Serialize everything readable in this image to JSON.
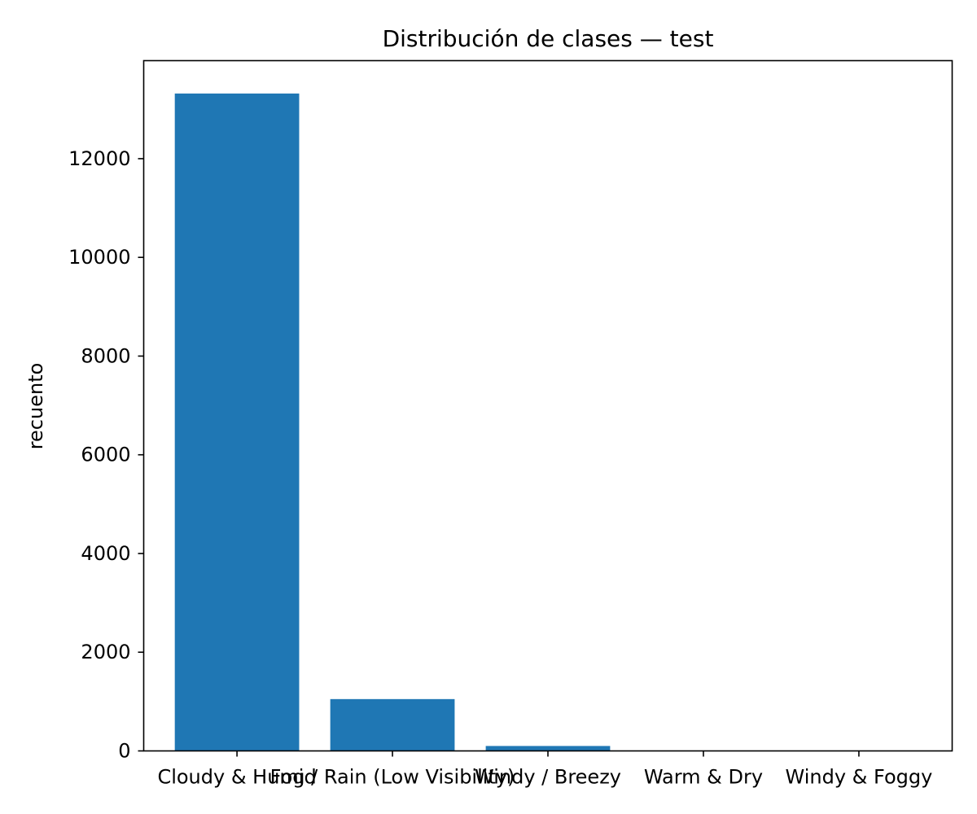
{
  "chart_data": {
    "type": "bar",
    "title": "Distribución de clases — test",
    "xlabel": "",
    "ylabel": "recuento",
    "categories": [
      "Cloudy & Humid",
      "Fog / Rain (Low Visibility)",
      "Windy / Breezy",
      "Warm & Dry",
      "Windy & Foggy"
    ],
    "values": [
      13320,
      1050,
      100,
      0,
      0
    ],
    "ylim": [
      0,
      13986
    ],
    "yticks": [
      0,
      2000,
      4000,
      6000,
      8000,
      10000,
      12000
    ],
    "bar_color": "#1f77b4",
    "grid": false,
    "legend": "none"
  }
}
